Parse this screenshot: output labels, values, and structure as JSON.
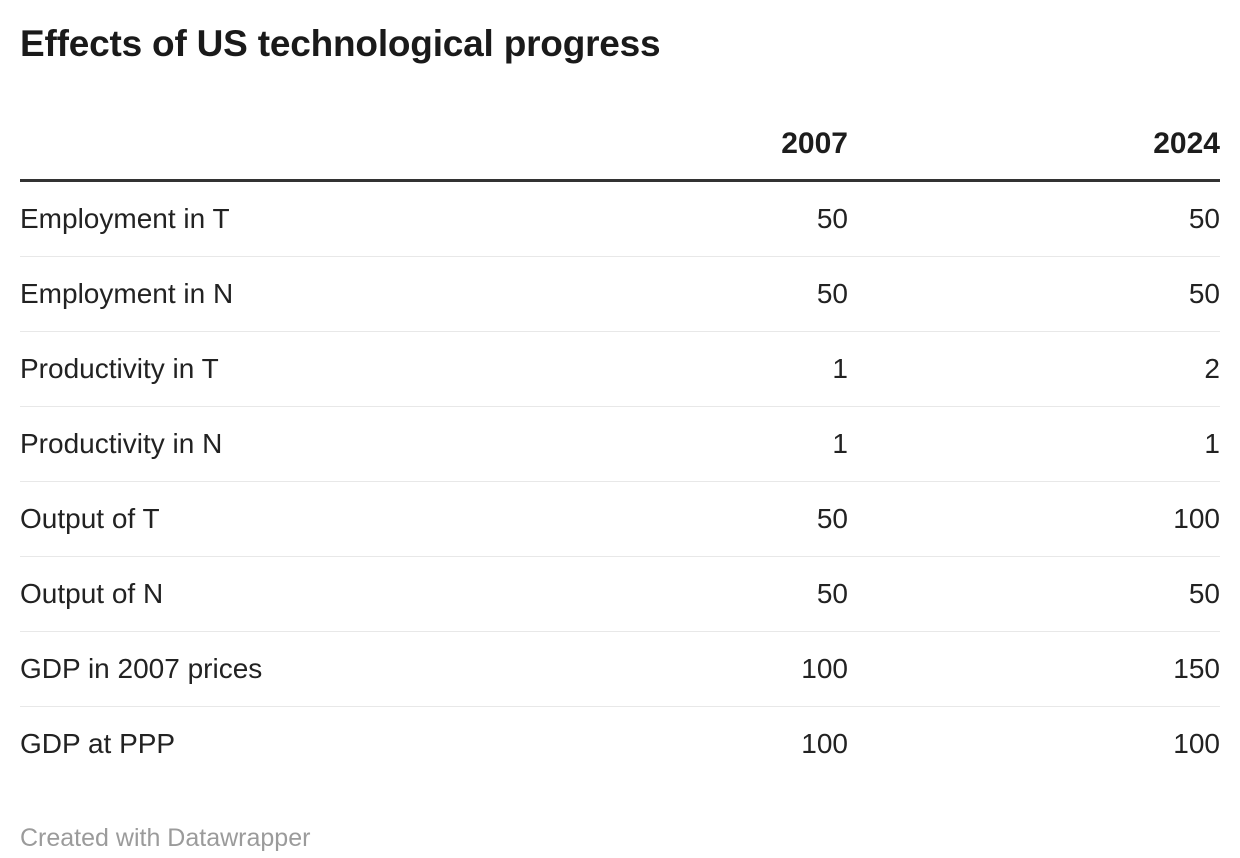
{
  "title": "Effects of US technological progress",
  "table": {
    "columns": [
      "",
      "2007",
      "2024"
    ],
    "rows": [
      {
        "label": "Employment in T",
        "values": [
          "50",
          "50"
        ]
      },
      {
        "label": "Employment in N",
        "values": [
          "50",
          "50"
        ]
      },
      {
        "label": "Productivity in T",
        "values": [
          "1",
          "2"
        ]
      },
      {
        "label": "Productivity in N",
        "values": [
          "1",
          "1"
        ]
      },
      {
        "label": "Output of T",
        "values": [
          "50",
          "100"
        ]
      },
      {
        "label": "Output of N",
        "values": [
          "50",
          "50"
        ]
      },
      {
        "label": "GDP in 2007 prices",
        "values": [
          "100",
          "150"
        ]
      },
      {
        "label": "GDP at PPP",
        "values": [
          "100",
          "100"
        ]
      }
    ]
  },
  "footer": {
    "attribution": "Created with Datawrapper"
  },
  "colors": {
    "title_text": "#1a1a1a",
    "body_text": "#222222",
    "header_rule": "#333333",
    "row_rule": "#e8e8e8",
    "attribution_text": "#9b9b9b",
    "background": "#ffffff"
  },
  "chart_data": {
    "type": "table",
    "title": "Effects of US technological progress",
    "categories": [
      "Employment in T",
      "Employment in N",
      "Productivity in T",
      "Productivity in N",
      "Output of T",
      "Output of N",
      "GDP in 2007 prices",
      "GDP at PPP"
    ],
    "series": [
      {
        "name": "2007",
        "values": [
          50,
          50,
          1,
          1,
          50,
          50,
          100,
          100
        ]
      },
      {
        "name": "2024",
        "values": [
          50,
          50,
          2,
          1,
          100,
          50,
          150,
          100
        ]
      }
    ],
    "legend_position": "none",
    "grid": "horizontal-rules"
  }
}
